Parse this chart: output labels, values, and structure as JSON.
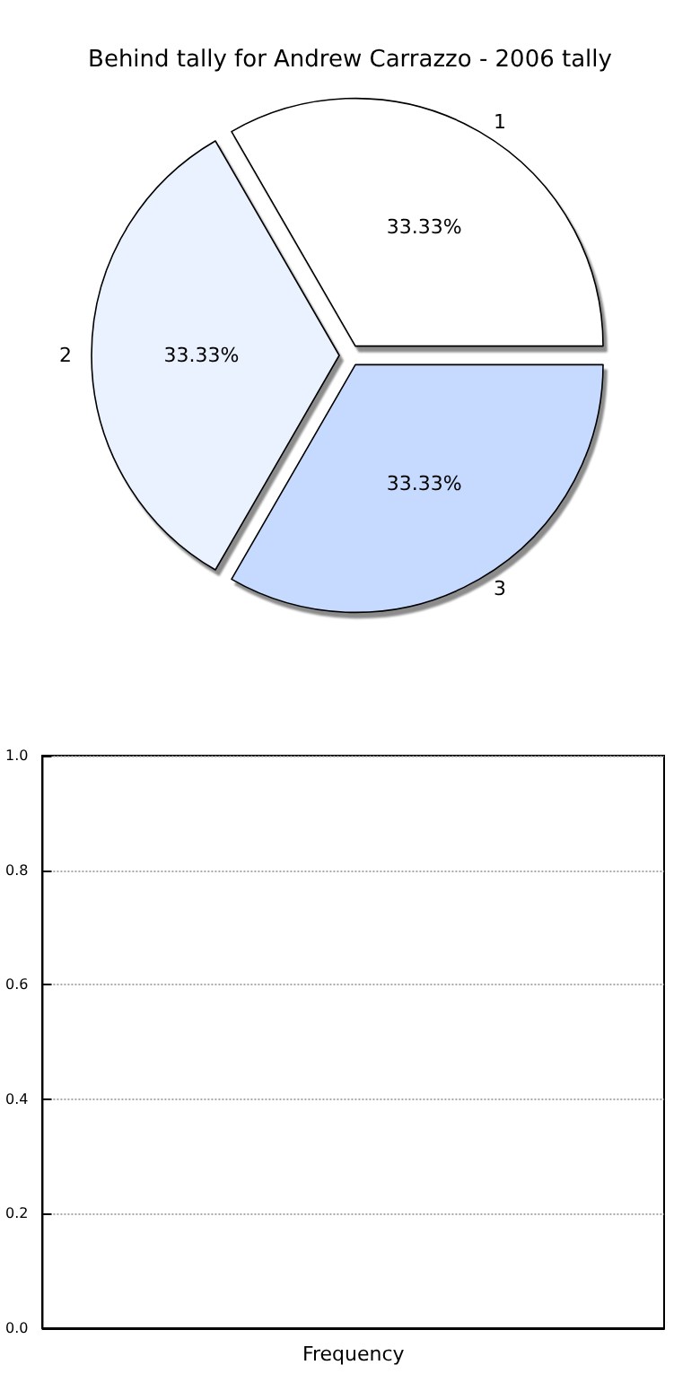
{
  "chart_data": [
    {
      "type": "pie",
      "title": "Behind tally for Andrew Carrazzo - 2006 tally",
      "categories": [
        "1",
        "2",
        "3"
      ],
      "values": [
        33.33,
        33.33,
        33.33
      ],
      "colors": [
        "#ffffff",
        "#eaf1ff",
        "#c6d9ff"
      ],
      "value_labels": [
        "33.33%",
        "33.33%",
        "33.33%"
      ]
    },
    {
      "type": "bar",
      "categories": [
        null
      ],
      "values": [
        null
      ],
      "xlabel": "Frequency",
      "ylim": [
        0,
        1
      ],
      "yticks": [
        {
          "value": 0,
          "label": "0.0"
        },
        {
          "value": 0.2,
          "label": "0.2"
        },
        {
          "value": 0.4,
          "label": "0.4"
        },
        {
          "value": 0.6,
          "label": "0.6"
        },
        {
          "value": 0.8,
          "label": "0.8"
        },
        {
          "value": 1,
          "label": "1.0"
        }
      ],
      "grid": "y",
      "tick_labels": "y"
    }
  ]
}
